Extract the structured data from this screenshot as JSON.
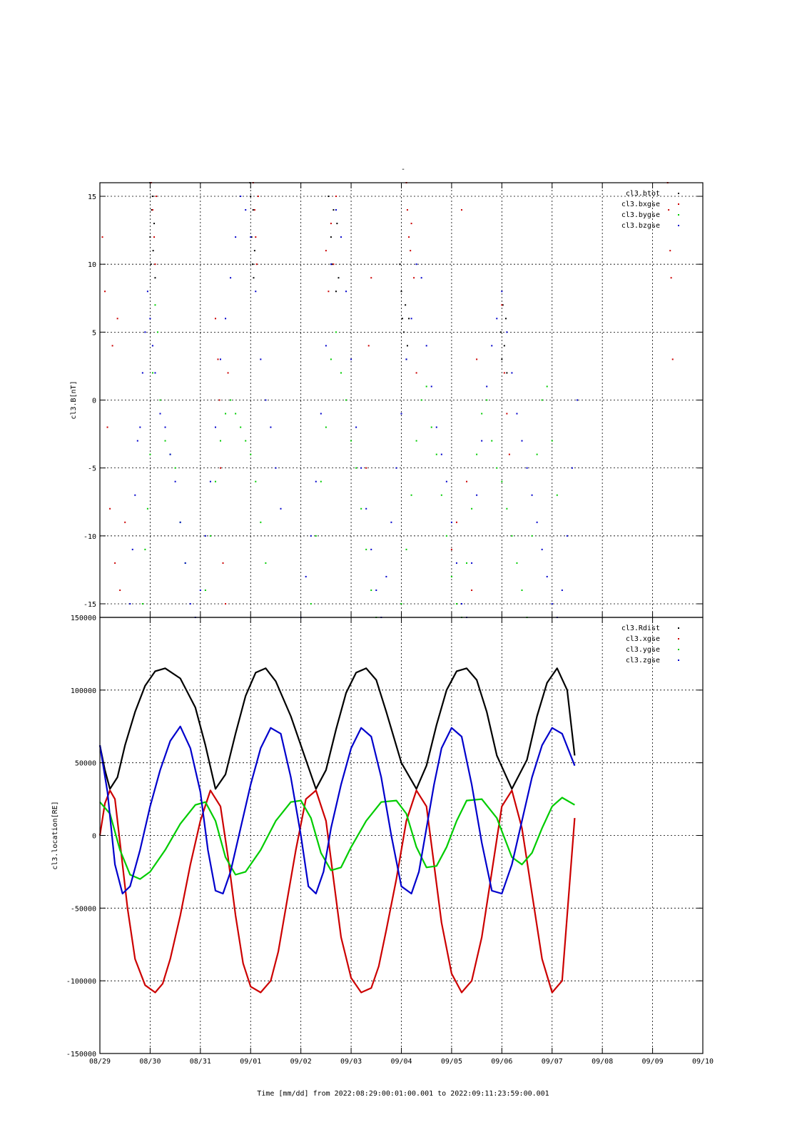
{
  "figure": {
    "top_title": "-",
    "xlabel": "Time [mm/dd]  from 2022:08:29:00:01:00.001  to  2022:09:11:23:59:00.001",
    "x_ticks": [
      "08/29",
      "08/30",
      "08/31",
      "09/01",
      "09/02",
      "09/03",
      "09/04",
      "09/05",
      "09/06",
      "09/07",
      "09/08",
      "09/09",
      "09/10"
    ]
  },
  "chart_data": [
    {
      "type": "scatter",
      "title": "",
      "xlabel": "",
      "ylabel": "cl3.B[nT]",
      "xlim": [
        0,
        12
      ],
      "ylim": [
        -16,
        16
      ],
      "y_ticks": [
        -15,
        -10,
        -5,
        0,
        5,
        10,
        15
      ],
      "grid": true,
      "legend_position": "top-right",
      "x_units": "days since 08/29",
      "series": [
        {
          "name": "cl3.btot",
          "color": "#000000",
          "x": [
            1.0,
            1.0,
            1.02,
            1.03,
            1.05,
            1.06,
            1.08,
            1.1,
            2.99,
            3.0,
            3.02,
            3.04,
            3.05,
            3.06,
            3.08,
            4.55,
            4.6,
            4.62,
            4.65,
            4.7,
            4.72,
            4.75,
            5.97,
            6.0,
            6.02,
            6.05,
            6.08,
            6.1,
            6.12,
            6.15,
            7.98,
            8.0,
            8.02,
            8.05,
            8.08,
            8.1
          ],
          "y": [
            16,
            12,
            10,
            14,
            15,
            11,
            13,
            9,
            16,
            15,
            12,
            10,
            14,
            9,
            11,
            15,
            12,
            10,
            14,
            8,
            13,
            9,
            10,
            8,
            6,
            5,
            7,
            3,
            4,
            6,
            5,
            3,
            7,
            4,
            6,
            2
          ]
        },
        {
          "name": "cl3.bxgse",
          "color": "#cc0000",
          "x": [
            0.05,
            0.1,
            0.15,
            0.2,
            0.25,
            0.3,
            0.35,
            0.4,
            0.5,
            1.02,
            1.05,
            1.08,
            1.1,
            1.12,
            2.3,
            2.35,
            2.38,
            2.4,
            2.45,
            2.5,
            2.55,
            3.05,
            3.08,
            3.1,
            3.12,
            3.15,
            4.5,
            4.55,
            4.6,
            4.65,
            4.7,
            5.3,
            5.35,
            5.4,
            6.1,
            6.12,
            6.15,
            6.18,
            6.2,
            6.25,
            6.3,
            7.0,
            7.1,
            7.2,
            7.3,
            7.4,
            7.5,
            8.0,
            8.05,
            8.1,
            8.15,
            11.3,
            11.32,
            11.35,
            11.37,
            11.4
          ],
          "y": [
            12,
            8,
            -2,
            -8,
            4,
            -12,
            6,
            -14,
            -9,
            16,
            14,
            12,
            10,
            15,
            6,
            3,
            0,
            -5,
            -12,
            -15,
            2,
            16,
            14,
            12,
            10,
            15,
            11,
            8,
            13,
            10,
            15,
            -5,
            4,
            9,
            16,
            14,
            12,
            11,
            13,
            9,
            2,
            -11,
            -9,
            14,
            -6,
            -14,
            3,
            7,
            2,
            -1,
            -4,
            16,
            14,
            11,
            9,
            3
          ]
        },
        {
          "name": "cl3.bygse",
          "color": "#00cc00",
          "x": [
            0.85,
            0.9,
            0.95,
            1.0,
            1.05,
            1.1,
            1.15,
            1.2,
            1.3,
            1.4,
            1.5,
            1.6,
            1.7,
            2.1,
            2.2,
            2.3,
            2.4,
            2.5,
            2.6,
            2.7,
            2.8,
            2.9,
            3.0,
            3.1,
            3.2,
            3.3,
            4.2,
            4.3,
            4.4,
            4.5,
            4.6,
            4.7,
            4.8,
            4.9,
            5.0,
            5.1,
            5.2,
            5.3,
            5.4,
            5.5,
            6.0,
            6.1,
            6.2,
            6.3,
            6.4,
            6.5,
            6.6,
            6.7,
            6.8,
            6.9,
            7.0,
            7.1,
            7.2,
            7.3,
            7.4,
            7.5,
            7.6,
            7.7,
            7.8,
            7.9,
            8.0,
            8.1,
            8.2,
            8.3,
            8.4,
            8.5,
            8.6,
            8.7,
            8.8,
            8.9,
            9.0,
            9.1
          ],
          "y": [
            -15,
            -11,
            -8,
            -4,
            2,
            7,
            5,
            0,
            -3,
            -4,
            -5,
            -9,
            -12,
            -14,
            -10,
            -6,
            -3,
            -1,
            0,
            -1,
            -2,
            -3,
            -4,
            -6,
            -9,
            -12,
            -15,
            -10,
            -6,
            -2,
            3,
            5,
            2,
            0,
            -3,
            -5,
            -8,
            -11,
            -14,
            -16,
            -15,
            -11,
            -7,
            -3,
            0,
            1,
            -2,
            -4,
            -7,
            -10,
            -13,
            -15,
            -16,
            -12,
            -8,
            -4,
            -1,
            0,
            -3,
            -5,
            -6,
            -8,
            -10,
            -12,
            -14,
            -16,
            -10,
            -4,
            0,
            1,
            -3,
            -7
          ]
        },
        {
          "name": "cl3.bzgse",
          "color": "#0000cc",
          "x": [
            0.6,
            0.65,
            0.7,
            0.75,
            0.8,
            0.85,
            0.9,
            0.95,
            1.0,
            1.05,
            1.1,
            1.2,
            1.3,
            1.4,
            1.5,
            1.6,
            1.7,
            1.8,
            1.9,
            2.0,
            2.1,
            2.2,
            2.3,
            2.4,
            2.5,
            2.6,
            2.7,
            2.8,
            2.9,
            3.0,
            3.1,
            3.2,
            3.3,
            3.4,
            3.5,
            3.6,
            4.0,
            4.1,
            4.2,
            4.3,
            4.4,
            4.5,
            4.6,
            4.7,
            4.8,
            4.9,
            5.0,
            5.1,
            5.2,
            5.3,
            5.4,
            5.5,
            5.6,
            5.7,
            5.8,
            5.9,
            6.0,
            6.1,
            6.2,
            6.3,
            6.4,
            6.5,
            6.6,
            6.7,
            6.8,
            6.9,
            7.0,
            7.1,
            7.2,
            7.3,
            7.4,
            7.5,
            7.6,
            7.7,
            7.8,
            7.9,
            8.0,
            8.1,
            8.2,
            8.3,
            8.4,
            8.5,
            8.6,
            8.7,
            8.8,
            8.9,
            9.0,
            9.1,
            9.2,
            9.3,
            9.4,
            9.5
          ],
          "y": [
            -15,
            -11,
            -7,
            -3,
            -2,
            2,
            5,
            8,
            6,
            4,
            2,
            -1,
            -2,
            -4,
            -6,
            -9,
            -12,
            -15,
            -16,
            -14,
            -10,
            -6,
            -2,
            3,
            6,
            9,
            12,
            15,
            14,
            12,
            8,
            3,
            0,
            -2,
            -5,
            -8,
            -16,
            -13,
            -10,
            -6,
            -1,
            4,
            10,
            14,
            12,
            8,
            3,
            -2,
            -5,
            -8,
            -11,
            -14,
            -16,
            -13,
            -9,
            -5,
            -1,
            3,
            6,
            10,
            9,
            4,
            1,
            -2,
            -4,
            -6,
            -9,
            -12,
            -15,
            -16,
            -12,
            -7,
            -3,
            1,
            4,
            6,
            8,
            5,
            2,
            -1,
            -3,
            -5,
            -7,
            -9,
            -11,
            -13,
            -15,
            -16,
            -14,
            -10,
            -5,
            0
          ]
        }
      ]
    },
    {
      "type": "line",
      "title": "",
      "xlabel": "",
      "ylabel": "cl3.location[RE]",
      "xlim": [
        0,
        12
      ],
      "ylim": [
        -150000,
        150000
      ],
      "y_ticks": [
        -150000,
        -100000,
        -50000,
        0,
        50000,
        100000,
        150000
      ],
      "grid": true,
      "legend_position": "top-right",
      "x_units": "days since 08/29",
      "series": [
        {
          "name": "cl3.Rdist",
          "color": "#000000",
          "x": [
            0,
            0.1,
            0.2,
            0.35,
            0.5,
            0.7,
            0.9,
            1.1,
            1.3,
            1.6,
            1.9,
            2.1,
            2.3,
            2.5,
            2.7,
            2.9,
            3.1,
            3.3,
            3.5,
            3.8,
            4.1,
            4.3,
            4.5,
            4.7,
            4.9,
            5.1,
            5.3,
            5.5,
            5.7,
            6.0,
            6.3,
            6.5,
            6.7,
            6.9,
            7.1,
            7.3,
            7.5,
            7.7,
            7.9,
            8.2,
            8.5,
            8.7,
            8.9,
            9.1,
            9.3,
            9.45
          ],
          "y": [
            62000,
            45000,
            32000,
            40000,
            62000,
            85000,
            103000,
            113000,
            115000,
            108000,
            88000,
            62000,
            32000,
            42000,
            70000,
            96000,
            112000,
            115000,
            106000,
            82000,
            52000,
            32000,
            45000,
            73000,
            98000,
            112000,
            115000,
            107000,
            85000,
            50000,
            32000,
            48000,
            76000,
            100000,
            113000,
            115000,
            107000,
            85000,
            55000,
            32000,
            52000,
            82000,
            105000,
            115000,
            100000,
            55000
          ]
        },
        {
          "name": "cl3.xgse",
          "color": "#cc0000",
          "x": [
            0,
            0.1,
            0.2,
            0.3,
            0.4,
            0.55,
            0.7,
            0.9,
            1.1,
            1.25,
            1.4,
            1.6,
            1.8,
            2.0,
            2.2,
            2.4,
            2.55,
            2.7,
            2.85,
            3.0,
            3.2,
            3.4,
            3.55,
            3.7,
            3.9,
            4.1,
            4.3,
            4.5,
            4.65,
            4.8,
            5.0,
            5.2,
            5.4,
            5.55,
            5.7,
            5.9,
            6.1,
            6.3,
            6.5,
            6.65,
            6.8,
            7.0,
            7.2,
            7.4,
            7.6,
            7.8,
            8.0,
            8.2,
            8.4,
            8.6,
            8.8,
            9.0,
            9.2,
            9.45
          ],
          "y": [
            0,
            22000,
            31000,
            25000,
            -5000,
            -50000,
            -85000,
            -103000,
            -108000,
            -102000,
            -85000,
            -55000,
            -20000,
            10000,
            31000,
            20000,
            -15000,
            -55000,
            -88000,
            -104000,
            -108000,
            -100000,
            -80000,
            -50000,
            -10000,
            25000,
            31000,
            10000,
            -30000,
            -70000,
            -98000,
            -108000,
            -105000,
            -90000,
            -65000,
            -30000,
            10000,
            31000,
            20000,
            -20000,
            -60000,
            -95000,
            -108000,
            -100000,
            -70000,
            -25000,
            20000,
            31000,
            5000,
            -40000,
            -85000,
            -108000,
            -100000,
            12000
          ]
        },
        {
          "name": "cl3.ygse",
          "color": "#00cc00",
          "x": [
            0,
            0.2,
            0.4,
            0.6,
            0.8,
            1.0,
            1.3,
            1.6,
            1.9,
            2.1,
            2.3,
            2.5,
            2.7,
            2.9,
            3.2,
            3.5,
            3.8,
            4.0,
            4.2,
            4.4,
            4.6,
            4.8,
            5.0,
            5.3,
            5.6,
            5.9,
            6.1,
            6.3,
            6.5,
            6.7,
            6.9,
            7.1,
            7.3,
            7.6,
            7.9,
            8.2,
            8.4,
            8.6,
            8.8,
            9.0,
            9.2,
            9.45
          ],
          "y": [
            23000,
            15000,
            -10000,
            -27000,
            -30000,
            -25000,
            -10000,
            8000,
            21000,
            23000,
            10000,
            -15000,
            -27000,
            -25000,
            -10000,
            10000,
            23000,
            24000,
            12000,
            -12000,
            -24000,
            -22000,
            -8000,
            10000,
            23000,
            24000,
            15000,
            -8000,
            -22000,
            -21000,
            -8000,
            10000,
            24000,
            25000,
            12000,
            -15000,
            -20000,
            -12000,
            5000,
            20000,
            26000,
            21000
          ]
        },
        {
          "name": "cl3.zgse",
          "color": "#0000cc",
          "x": [
            0,
            0.15,
            0.3,
            0.45,
            0.6,
            0.8,
            1.0,
            1.2,
            1.4,
            1.6,
            1.8,
            2.0,
            2.15,
            2.3,
            2.45,
            2.6,
            2.8,
            3.0,
            3.2,
            3.4,
            3.6,
            3.8,
            4.0,
            4.15,
            4.3,
            4.45,
            4.6,
            4.8,
            5.0,
            5.2,
            5.4,
            5.6,
            5.8,
            6.0,
            6.2,
            6.35,
            6.5,
            6.65,
            6.8,
            7.0,
            7.2,
            7.4,
            7.6,
            7.8,
            8.0,
            8.2,
            8.4,
            8.6,
            8.8,
            9.0,
            9.2,
            9.45
          ],
          "y": [
            62000,
            30000,
            -20000,
            -40000,
            -35000,
            -10000,
            20000,
            45000,
            65000,
            75000,
            60000,
            30000,
            -10000,
            -38000,
            -40000,
            -25000,
            5000,
            35000,
            60000,
            74000,
            70000,
            40000,
            0,
            -35000,
            -40000,
            -25000,
            5000,
            35000,
            60000,
            74000,
            68000,
            40000,
            0,
            -35000,
            -40000,
            -25000,
            5000,
            35000,
            60000,
            74000,
            68000,
            35000,
            -5000,
            -38000,
            -40000,
            -20000,
            10000,
            40000,
            62000,
            74000,
            70000,
            48000
          ]
        }
      ]
    }
  ]
}
